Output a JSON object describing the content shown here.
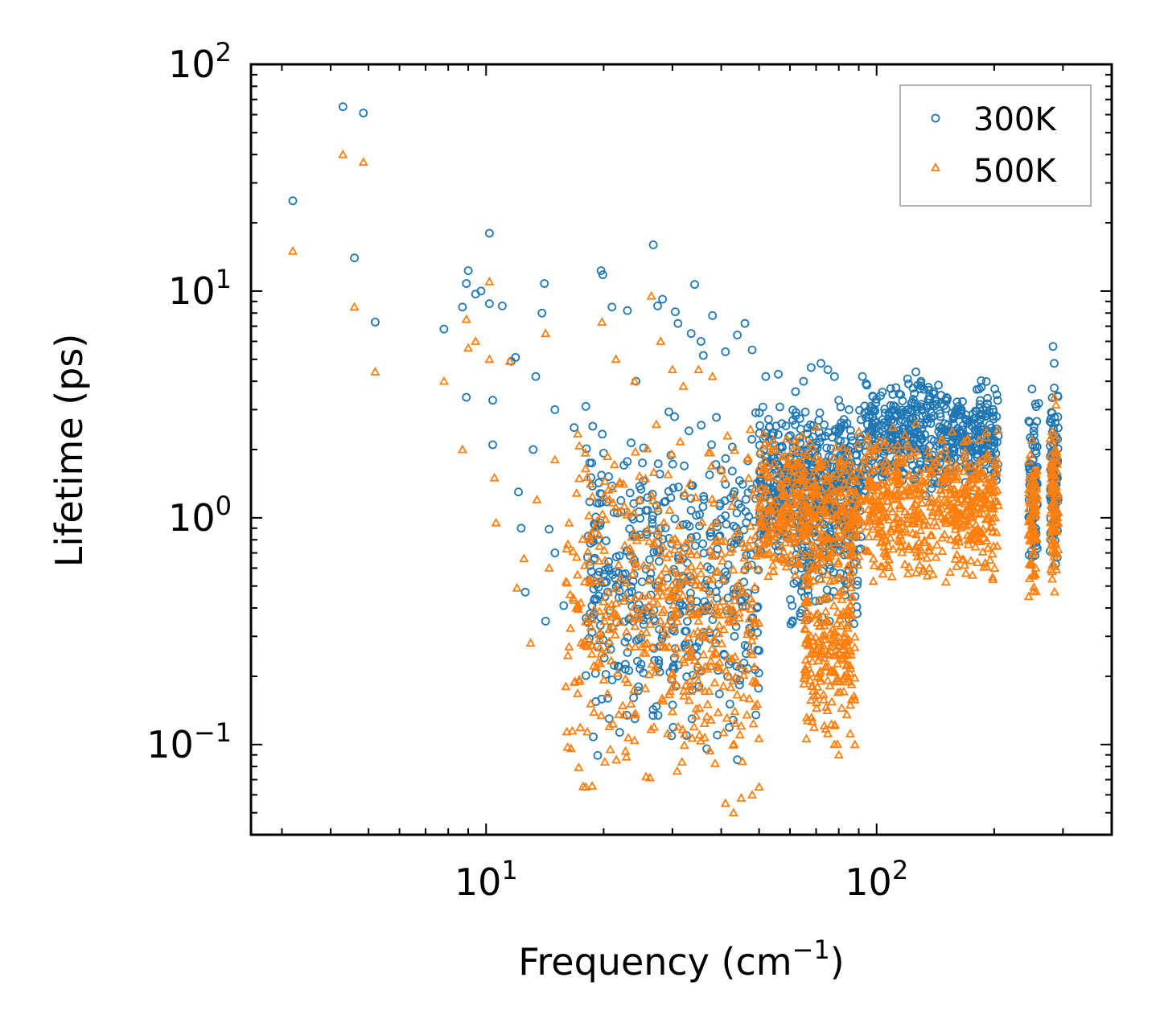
{
  "chart_data": {
    "type": "scatter",
    "title": "",
    "xlabel": "Frequency (cm",
    "xlabel_sup": "−1",
    "xlabel_suffix": ")",
    "ylabel": "Lifetime (ps)",
    "xscale": "log",
    "yscale": "log",
    "xlim": [
      2.5,
      400
    ],
    "ylim": [
      0.04,
      100
    ],
    "x_ticks": [
      {
        "value": 10,
        "base": "10",
        "exp": "1"
      },
      {
        "value": 100,
        "base": "10",
        "exp": "2"
      }
    ],
    "y_ticks": [
      {
        "value": 0.1,
        "base": "10",
        "exp": "−1"
      },
      {
        "value": 1,
        "base": "10",
        "exp": "0"
      },
      {
        "value": 10,
        "base": "10",
        "exp": "1"
      },
      {
        "value": 100,
        "base": "10",
        "exp": "2"
      }
    ],
    "legend_position": "top-right",
    "series": [
      {
        "name": "300K",
        "marker": "circle",
        "color": "#1f77b4",
        "points": [
          [
            3.2,
            25.0
          ],
          [
            4.3,
            65.0
          ],
          [
            4.6,
            14.0
          ],
          [
            4.85,
            61.0
          ],
          [
            5.2,
            7.3
          ],
          [
            7.8,
            6.8
          ],
          [
            8.7,
            8.5
          ],
          [
            8.9,
            3.4
          ],
          [
            8.9,
            10.8
          ],
          [
            9.0,
            12.3
          ],
          [
            9.4,
            9.7
          ],
          [
            9.7,
            10.0
          ],
          [
            10.2,
            18.0
          ],
          [
            10.2,
            8.8
          ],
          [
            10.4,
            3.3
          ],
          [
            10.4,
            2.1
          ],
          [
            11.0,
            8.6
          ],
          [
            11.6,
            4.9
          ],
          [
            11.9,
            5.1
          ],
          [
            12.1,
            1.3
          ],
          [
            12.3,
            0.9
          ],
          [
            12.6,
            0.47
          ],
          [
            13.2,
            2.0
          ],
          [
            13.4,
            4.2
          ],
          [
            13.9,
            8.0
          ],
          [
            14.1,
            10.8
          ],
          [
            14.2,
            0.35
          ],
          [
            14.5,
            0.89
          ],
          [
            15.0,
            3.0
          ],
          [
            15.0,
            0.7
          ],
          [
            15.8,
            0.41
          ],
          [
            16.8,
            2.5
          ],
          [
            18.0,
            3.1
          ],
          [
            19.7,
            12.3
          ],
          [
            19.9,
            11.8
          ],
          [
            20.5,
            0.16
          ],
          [
            21.0,
            8.5
          ],
          [
            23.0,
            8.2
          ],
          [
            24.2,
            4.0
          ],
          [
            26.8,
            16.0
          ],
          [
            27.5,
            8.6
          ],
          [
            28.3,
            9.2
          ],
          [
            30.5,
            8.1
          ],
          [
            31.0,
            7.2
          ],
          [
            33.5,
            6.5
          ],
          [
            34.2,
            10.7
          ],
          [
            35.5,
            6.0
          ],
          [
            36.0,
            5.2
          ],
          [
            38.0,
            7.8
          ],
          [
            41.0,
            5.4
          ],
          [
            44.0,
            6.4
          ],
          [
            46.0,
            7.2
          ],
          [
            48.0,
            5.5
          ],
          [
            52.0,
            4.2
          ],
          [
            56.0,
            4.3
          ],
          [
            62.0,
            3.6
          ],
          [
            65.0,
            4.0
          ],
          [
            68.0,
            4.6
          ],
          [
            72.0,
            4.8
          ],
          [
            75.0,
            4.5
          ],
          [
            78.0,
            4.2
          ],
          [
            80.0,
            3.3
          ],
          [
            85.0,
            3.0
          ],
          [
            92.0,
            4.2
          ],
          [
            94.0,
            3.9
          ],
          [
            110.0,
            3.5
          ],
          [
            120.0,
            4.1
          ],
          [
            126.0,
            4.4
          ],
          [
            130.0,
            4.0
          ],
          [
            140.0,
            3.6
          ],
          [
            150.0,
            3.3
          ],
          [
            160.0,
            3.0
          ],
          [
            170.0,
            2.7
          ],
          [
            183.0,
            3.7
          ],
          [
            190.0,
            2.8
          ],
          [
            200.0,
            2.2
          ],
          [
            250.0,
            3.7
          ],
          [
            260.0,
            3.2
          ],
          [
            283.0,
            5.7
          ],
          [
            285.0,
            4.8
          ]
        ],
        "clusters": [
          {
            "x": [
              18,
              50
            ],
            "y": [
              0.08,
              3.2
            ],
            "n": 480,
            "seed": 11
          },
          {
            "x": [
              50,
              92
            ],
            "y": [
              0.6,
              3.2
            ],
            "n": 520,
            "seed": 12
          },
          {
            "x": [
              60,
              90
            ],
            "y": [
              0.3,
              1.0
            ],
            "n": 90,
            "seed": 13
          },
          {
            "x": [
              93,
              205
            ],
            "y": [
              1.2,
              4.2
            ],
            "n": 520,
            "seed": 14
          },
          {
            "x": [
              245,
              258
            ],
            "y": [
              0.55,
              3.6
            ],
            "n": 70,
            "seed": 15
          },
          {
            "x": [
              278,
              292
            ],
            "y": [
              0.55,
              5.0
            ],
            "n": 90,
            "seed": 16
          }
        ]
      },
      {
        "name": "500K",
        "marker": "triangle",
        "color": "#ff7f0e",
        "points": [
          [
            3.2,
            15.0
          ],
          [
            4.3,
            40.0
          ],
          [
            4.6,
            8.5
          ],
          [
            4.85,
            37.0
          ],
          [
            5.2,
            4.4
          ],
          [
            7.8,
            4.0
          ],
          [
            8.7,
            2.0
          ],
          [
            8.9,
            7.5
          ],
          [
            9.0,
            5.6
          ],
          [
            9.4,
            6.0
          ],
          [
            10.2,
            11.0
          ],
          [
            10.2,
            5.0
          ],
          [
            10.5,
            1.5
          ],
          [
            10.6,
            0.95
          ],
          [
            11.5,
            4.9
          ],
          [
            12.0,
            0.49
          ],
          [
            12.5,
            0.66
          ],
          [
            13.0,
            0.28
          ],
          [
            13.5,
            1.2
          ],
          [
            14.2,
            6.5
          ],
          [
            14.5,
            0.6
          ],
          [
            15.0,
            1.8
          ],
          [
            16.0,
            0.18
          ],
          [
            17.0,
            0.4
          ],
          [
            19.0,
            0.9
          ],
          [
            19.8,
            7.3
          ],
          [
            20.8,
            0.095
          ],
          [
            21.5,
            5.0
          ],
          [
            24.0,
            4.0
          ],
          [
            26.5,
            9.5
          ],
          [
            28.0,
            6.0
          ],
          [
            30.0,
            4.5
          ],
          [
            32.0,
            3.8
          ],
          [
            35.0,
            4.5
          ],
          [
            38.0,
            4.2
          ],
          [
            41.0,
            0.055
          ],
          [
            43.0,
            0.05
          ],
          [
            45.0,
            0.058
          ],
          [
            48.0,
            0.06
          ],
          [
            50.0,
            0.065
          ],
          [
            55.0,
            2.0
          ],
          [
            62.0,
            2.2
          ],
          [
            70.0,
            2.5
          ],
          [
            78.0,
            0.1
          ],
          [
            80.0,
            0.09
          ],
          [
            90.0,
            2.4
          ],
          [
            110.0,
            2.5
          ],
          [
            126.0,
            2.6
          ],
          [
            150.0,
            2.0
          ],
          [
            183.0,
            2.2
          ],
          [
            250.0,
            2.2
          ],
          [
            285.0,
            3.4
          ]
        ],
        "clusters": [
          {
            "x": [
              16,
              50
            ],
            "y": [
              0.06,
              2.6
            ],
            "n": 520,
            "seed": 21
          },
          {
            "x": [
              50,
              92
            ],
            "y": [
              0.5,
              2.4
            ],
            "n": 420,
            "seed": 22
          },
          {
            "x": [
              65,
              88
            ],
            "y": [
              0.09,
              0.9
            ],
            "n": 240,
            "seed": 23
          },
          {
            "x": [
              93,
              205
            ],
            "y": [
              0.5,
              2.5
            ],
            "n": 560,
            "seed": 24
          },
          {
            "x": [
              245,
              258
            ],
            "y": [
              0.42,
              2.2
            ],
            "n": 80,
            "seed": 25
          },
          {
            "x": [
              278,
              292
            ],
            "y": [
              0.42,
              3.5
            ],
            "n": 100,
            "seed": 26
          }
        ]
      }
    ]
  }
}
